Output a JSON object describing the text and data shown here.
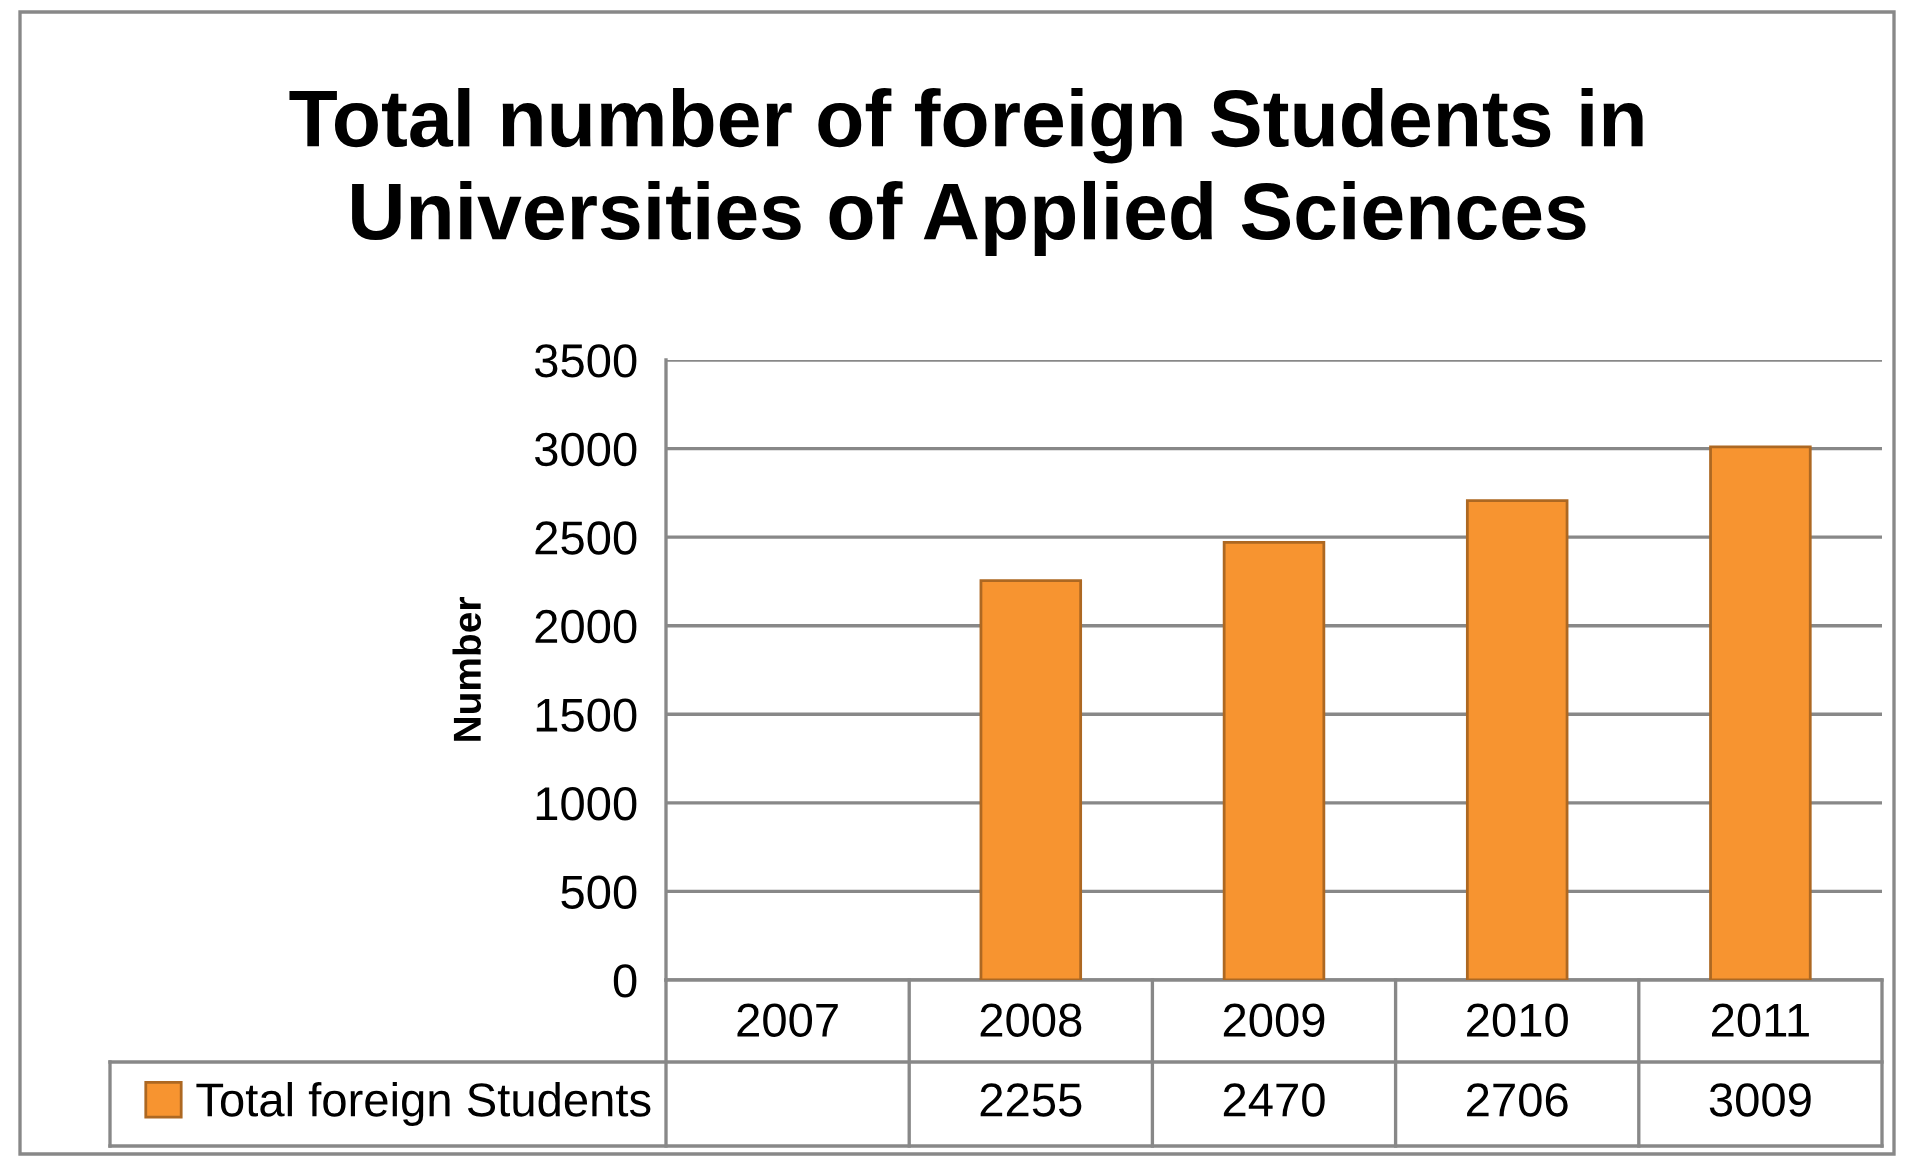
{
  "chart_data": {
    "type": "bar",
    "title": "Total number of foreign Students in\nUniversities of Applied Sciences",
    "ylabel": "Number",
    "categories": [
      "2007",
      "2008",
      "2009",
      "2010",
      "2011"
    ],
    "series": [
      {
        "name": "Total foreign Students",
        "color": "#f79430",
        "values": [
          null,
          2255,
          2470,
          2706,
          3009
        ]
      }
    ],
    "ylim": [
      0,
      3500
    ],
    "yticks": [
      0,
      500,
      1000,
      1500,
      2000,
      2500,
      3000,
      3500
    ],
    "grid": "y",
    "data_labels": true,
    "legend": "bottom left"
  }
}
